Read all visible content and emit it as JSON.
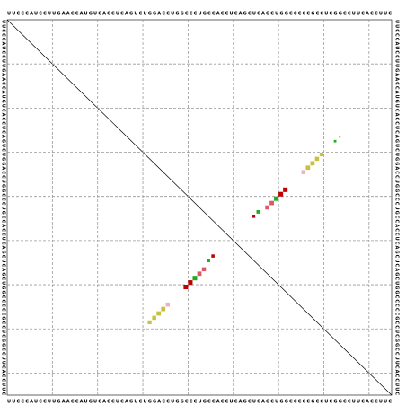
{
  "sequence": "UUCCCAUCCUUGAACCAUGUCACCUCAGUCUGGACCUGGCCCUGCCACCUCAGCUCAGCUGGCCCCCGCCUCGGCCUUCACCUUC",
  "upper_dots": [
    {
      "i": 54,
      "j": 44,
      "p": 0.5,
      "color": "#c00000"
    },
    {
      "i": 55,
      "j": 43,
      "p": 0.6,
      "color": "#22aa22"
    },
    {
      "i": 57,
      "j": 42,
      "p": 0.8,
      "color": "#d85a66"
    },
    {
      "i": 58,
      "j": 41,
      "p": 0.9,
      "color": "#d85a66"
    },
    {
      "i": 59,
      "j": 40,
      "p": 1,
      "color": "#22aa22"
    },
    {
      "i": 60,
      "j": 39,
      "p": 1,
      "color": "#c00000"
    },
    {
      "i": 61,
      "j": 38,
      "p": 1,
      "color": "#c00000"
    },
    {
      "i": 65,
      "j": 34,
      "p": 0.8,
      "color": "#f0b0c0"
    },
    {
      "i": 66,
      "j": 33,
      "p": 0.9,
      "color": "#c8c040"
    },
    {
      "i": 67,
      "j": 32,
      "p": 0.9,
      "color": "#c8c040"
    },
    {
      "i": 68,
      "j": 31,
      "p": 0.8,
      "color": "#c8c040"
    },
    {
      "i": 69,
      "j": 30,
      "p": 0.7,
      "color": "#c8c040"
    },
    {
      "i": 72,
      "j": 27,
      "p": 0.3,
      "color": "#22aa22"
    },
    {
      "i": 73,
      "j": 26,
      "p": 0.2,
      "color": "#c8c040"
    }
  ],
  "lower_dots": [
    {
      "i": 45,
      "j": 53,
      "p": 0.5,
      "color": "#c00000"
    },
    {
      "i": 44,
      "j": 54,
      "p": 0.6,
      "color": "#22aa22"
    },
    {
      "i": 43,
      "j": 56,
      "p": 0.8,
      "color": "#d85a66"
    },
    {
      "i": 42,
      "j": 57,
      "p": 0.9,
      "color": "#d85a66"
    },
    {
      "i": 41,
      "j": 58,
      "p": 1,
      "color": "#22aa22"
    },
    {
      "i": 40,
      "j": 59,
      "p": 1,
      "color": "#c00000"
    },
    {
      "i": 39,
      "j": 60,
      "p": 1,
      "color": "#c00000"
    },
    {
      "i": 35,
      "j": 64,
      "p": 0.8,
      "color": "#f0b0c0"
    },
    {
      "i": 34,
      "j": 65,
      "p": 0.9,
      "color": "#c8c040"
    },
    {
      "i": 33,
      "j": 66,
      "p": 0.9,
      "color": "#c8c040"
    },
    {
      "i": 32,
      "j": 67,
      "p": 0.8,
      "color": "#c8c040"
    },
    {
      "i": 31,
      "j": 68,
      "p": 0.7,
      "color": "#c8c040"
    }
  ]
}
